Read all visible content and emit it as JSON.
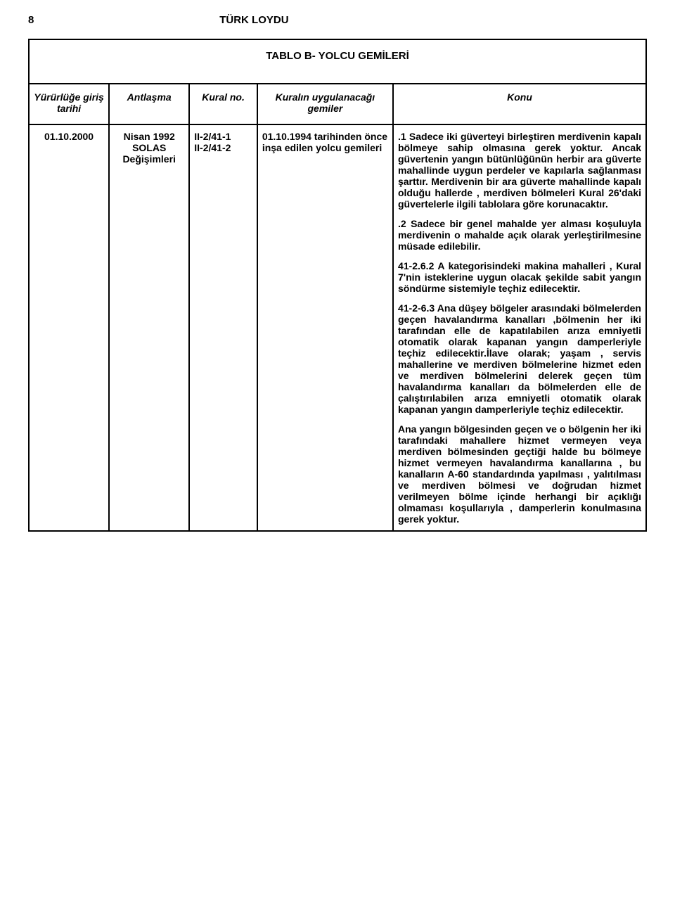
{
  "page": {
    "number": "8",
    "doc_title": "TÜRK LOYDU",
    "table_title": "TABLO B- YOLCU GEMİLERİ"
  },
  "columns": {
    "c1": "Yürürlüğe giriş tarihi",
    "c2": "Antlaşma",
    "c3": "Kural no.",
    "c4": "Kuralın uygulanacağı gemiler",
    "c5": "Konu"
  },
  "row": {
    "date": "01.10.2000",
    "treaty": "Nisan 1992 SOLAS Değişimleri",
    "rule_line1": "II-2/41-1",
    "rule_line2": "II-2/41-2",
    "ships": "01.10.1994 tarihinden önce inşa edilen yolcu gemileri",
    "subject": {
      "p1": ".1 Sadece iki güverteyi birleştiren merdivenin kapalı bölmeye sahip olmasına gerek yoktur. Ancak güvertenin yangın bütünlüğünün herbir ara güverte mahallinde uygun perdeler ve kapılarla sağlanması şarttır. Merdivenin bir ara güverte mahallinde kapalı olduğu hallerde , merdiven bölmeleri Kural 26'daki güvertelerle ilgili tablolara göre korunacaktır.",
      "p2": ".2 Sadece bir genel mahalde yer alması koşuluyla merdivenin o mahalde açık olarak yerleştirilmesine müsade edilebilir.",
      "p3": "41-2.6.2 A kategorisindeki makina mahalleri , Kural 7'nin isteklerine uygun olacak şekilde sabit yangın söndürme sistemiyle teçhiz edilecektir.",
      "p4": "41-2-6.3 Ana düşey bölgeler arasındaki bölmelerden geçen havalandırma kanalları ,bölmenin her iki tarafından elle de kapatılabilen arıza emniyetli otomatik olarak kapanan yangın damperleriyle teçhiz edilecektir.İlave olarak; yaşam , servis mahallerine ve merdiven bölmelerine hizmet eden ve merdiven bölmelerini delerek geçen tüm havalandırma kanalları da bölmelerden elle de çalıştırılabilen arıza emniyetli otomatik olarak kapanan yangın damperleriyle teçhiz edilecektir.",
      "p5": "Ana yangın bölgesinden geçen ve o bölgenin her iki tarafındaki mahallere hizmet vermeyen veya merdiven bölmesinden geçtiği halde bu bölmeye hizmet vermeyen havalandırma kanallarına , bu kanalların A-60 standardında yapılması , yalıtılması ve merdiven bölmesi ve doğrudan hizmet verilmeyen bölme içinde herhangi bir açıklığı olmaması koşullarıyla , damperlerin konulmasına gerek yoktur."
    }
  }
}
